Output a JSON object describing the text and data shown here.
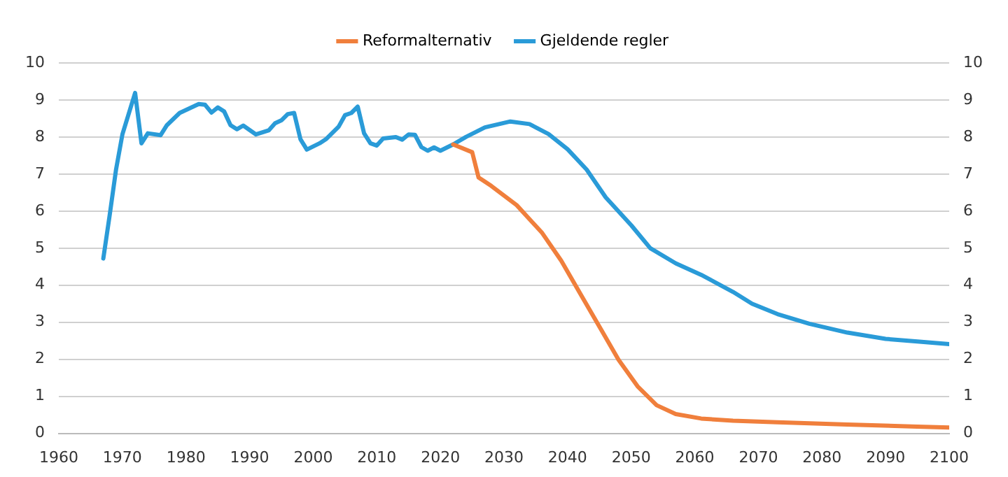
{
  "chart_data": {
    "type": "line",
    "xlim": [
      1960,
      2100
    ],
    "xticks": [
      1960,
      1970,
      1980,
      1990,
      2000,
      2010,
      2020,
      2030,
      2040,
      2050,
      2060,
      2070,
      2080,
      2090,
      2100
    ],
    "ylim": [
      0,
      10
    ],
    "yticks": [
      0,
      1,
      2,
      3,
      4,
      5,
      6,
      7,
      8,
      9,
      10
    ],
    "y2lim": [
      0,
      10
    ],
    "y2ticks": [
      0,
      1,
      2,
      3,
      4,
      5,
      6,
      7,
      8,
      9,
      10
    ],
    "grid": "y",
    "legend": "top",
    "marker": "none",
    "line_style": "solid",
    "series": [
      {
        "name": "Reformalternativ",
        "color": "#f07f3c",
        "x": [
          2022,
          2025,
          2026,
          2028,
          2032,
          2036,
          2039,
          2042,
          2045,
          2048,
          2051,
          2054,
          2057,
          2061,
          2066,
          2073,
          2084,
          2095,
          2100
        ],
        "values": [
          7.8,
          7.59,
          6.91,
          6.68,
          6.16,
          5.41,
          4.66,
          3.77,
          2.88,
          1.99,
          1.27,
          0.76,
          0.52,
          0.4,
          0.34,
          0.3,
          0.24,
          0.18,
          0.16
        ]
      },
      {
        "name": "Gjeldende regler",
        "color": "#2a9bd8",
        "x": [
          1967,
          1968,
          1969,
          1970,
          1972,
          1973,
          1974,
          1976,
          1977,
          1979,
          1980,
          1982,
          1983,
          1984,
          1985,
          1986,
          1987,
          1988,
          1989,
          1991,
          1993,
          1994,
          1995,
          1996,
          1997,
          1998,
          1999,
          2001,
          2002,
          2004,
          2005,
          2006,
          2007,
          2008,
          2009,
          2010,
          2011,
          2013,
          2014,
          2015,
          2016,
          2017,
          2018,
          2019,
          2020,
          2022,
          2024,
          2027,
          2031,
          2034,
          2037,
          2040,
          2043,
          2046,
          2050,
          2053,
          2057,
          2061,
          2066,
          2069,
          2073,
          2078,
          2084,
          2090,
          2095,
          2100
        ],
        "values": [
          4.72,
          5.89,
          7.12,
          8.07,
          9.19,
          7.83,
          8.1,
          8.05,
          8.32,
          8.65,
          8.73,
          8.89,
          8.87,
          8.66,
          8.8,
          8.69,
          8.32,
          8.21,
          8.31,
          8.07,
          8.18,
          8.37,
          8.45,
          8.62,
          8.65,
          7.94,
          7.66,
          7.83,
          7.94,
          8.28,
          8.59,
          8.65,
          8.82,
          8.1,
          7.83,
          7.77,
          7.96,
          8.0,
          7.93,
          8.07,
          8.06,
          7.73,
          7.63,
          7.72,
          7.63,
          7.8,
          8.0,
          8.26,
          8.42,
          8.35,
          8.08,
          7.67,
          7.12,
          6.37,
          5.62,
          5.0,
          4.59,
          4.28,
          3.82,
          3.5,
          3.22,
          2.96,
          2.72,
          2.55,
          2.48,
          2.41
        ]
      }
    ]
  }
}
